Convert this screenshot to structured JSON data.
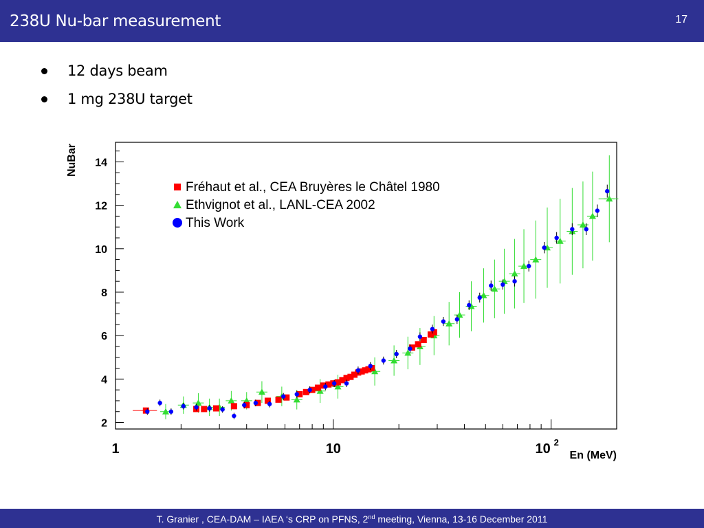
{
  "slide": {
    "title": "238U Nu-bar measurement",
    "number": "17",
    "bullets": [
      "12 days beam",
      "1 mg 238U target"
    ],
    "footer": {
      "before": "T. Granier ,  CEA-DAM – IAEA ‘s CRP on PFNS, 2",
      "sup": "nd",
      "after": " meeting,  Vienna, 13-16 December 2011"
    }
  },
  "colors": {
    "bar_bg": "#2e3192",
    "frehaut": "#ff0000",
    "ethvignot": "#33dd33",
    "this_work": "#0000ff"
  },
  "chart_data": {
    "type": "scatter",
    "xscale": "log",
    "xlim": [
      1,
      200
    ],
    "ylim": [
      1.7,
      14.9
    ],
    "xlabel": "En (MeV)",
    "ylabel": "NuBar",
    "xticks": [
      "1",
      "10",
      "10^2"
    ],
    "yticks": [
      "2",
      "4",
      "6",
      "8",
      "10",
      "12",
      "14"
    ],
    "legend_position": "top-center",
    "series": [
      {
        "name": "Fréhaut et al., CEA Bruyères le Châtel 1980",
        "marker": "square",
        "color": "#ff0000",
        "points": [
          [
            1.38,
            2.55
          ],
          [
            2.35,
            2.62
          ],
          [
            2.55,
            2.62
          ],
          [
            2.9,
            2.65
          ],
          [
            3.5,
            2.75
          ],
          [
            4.0,
            2.8
          ],
          [
            4.5,
            2.9
          ],
          [
            5.0,
            3.0
          ],
          [
            5.6,
            3.05
          ],
          [
            6.1,
            3.15
          ],
          [
            7.0,
            3.3
          ],
          [
            7.5,
            3.4
          ],
          [
            8.0,
            3.5
          ],
          [
            8.5,
            3.6
          ],
          [
            9.0,
            3.7
          ],
          [
            9.5,
            3.75
          ],
          [
            10.0,
            3.8
          ],
          [
            10.5,
            3.85
          ],
          [
            11.0,
            3.95
          ],
          [
            11.5,
            4.05
          ],
          [
            12.0,
            4.1
          ],
          [
            12.5,
            4.2
          ],
          [
            13.0,
            4.3
          ],
          [
            13.5,
            4.35
          ],
          [
            14.0,
            4.4
          ],
          [
            14.5,
            4.45
          ],
          [
            15.0,
            4.5
          ],
          [
            23.0,
            5.45
          ],
          [
            24.5,
            5.6
          ],
          [
            26.0,
            5.8
          ],
          [
            28.0,
            6.05
          ],
          [
            29.0,
            6.15
          ]
        ]
      },
      {
        "name": "Ethvignot et al., LANL-CEA 2002",
        "marker": "triangle",
        "color": "#33dd33",
        "points": [
          [
            1.7,
            2.5
          ],
          [
            2.05,
            2.8
          ],
          [
            2.4,
            2.9
          ],
          [
            2.7,
            2.7
          ],
          [
            3.0,
            2.7
          ],
          [
            3.4,
            3.0
          ],
          [
            4.0,
            3.0
          ],
          [
            4.7,
            3.4
          ],
          [
            5.8,
            3.2
          ],
          [
            6.8,
            3.05
          ],
          [
            8.7,
            3.45
          ],
          [
            10.5,
            3.65
          ],
          [
            15.5,
            4.35
          ],
          [
            19.0,
            4.85
          ],
          [
            22.0,
            5.2
          ],
          [
            25.0,
            5.5
          ],
          [
            29.0,
            6.0
          ],
          [
            34.0,
            6.55
          ],
          [
            38.0,
            6.95
          ],
          [
            43.0,
            7.35
          ],
          [
            49.0,
            7.85
          ],
          [
            55.0,
            8.15
          ],
          [
            61.0,
            8.5
          ],
          [
            68.0,
            8.85
          ],
          [
            75.0,
            9.2
          ],
          [
            85.0,
            9.5
          ],
          [
            96.0,
            10.05
          ],
          [
            110.0,
            10.35
          ],
          [
            125.0,
            10.8
          ],
          [
            140.0,
            11.1
          ],
          [
            155.0,
            11.5
          ],
          [
            185.0,
            12.3
          ]
        ],
        "yerr": [
          0.35,
          0.4,
          0.45,
          0.4,
          0.4,
          0.45,
          0.4,
          0.5,
          0.45,
          0.45,
          0.55,
          0.55,
          0.65,
          0.7,
          0.75,
          0.85,
          0.9,
          1.0,
          1.05,
          1.15,
          1.25,
          1.35,
          1.5,
          1.6,
          1.7,
          1.8,
          1.85,
          1.95,
          2.0,
          2.0,
          2.05,
          2.0
        ]
      },
      {
        "name": "This Work",
        "marker": "circle",
        "color": "#0000ff",
        "points": [
          [
            1.4,
            2.5
          ],
          [
            1.6,
            2.9
          ],
          [
            1.8,
            2.5
          ],
          [
            2.05,
            2.75
          ],
          [
            2.35,
            2.7
          ],
          [
            2.7,
            2.65
          ],
          [
            3.1,
            2.6
          ],
          [
            3.5,
            2.3
          ],
          [
            3.9,
            2.8
          ],
          [
            4.4,
            2.9
          ],
          [
            5.1,
            2.85
          ],
          [
            5.9,
            3.2
          ],
          [
            6.8,
            3.3
          ],
          [
            7.8,
            3.5
          ],
          [
            9.2,
            3.65
          ],
          [
            10.1,
            3.8
          ],
          [
            11.5,
            3.8
          ],
          [
            13.0,
            4.4
          ],
          [
            14.8,
            4.6
          ],
          [
            17.0,
            4.85
          ],
          [
            19.5,
            5.15
          ],
          [
            22.5,
            5.4
          ],
          [
            25.0,
            5.95
          ],
          [
            28.5,
            6.3
          ],
          [
            32.0,
            6.65
          ],
          [
            37.0,
            6.75
          ],
          [
            42.0,
            7.4
          ],
          [
            47.0,
            7.75
          ],
          [
            53.0,
            8.3
          ],
          [
            60.0,
            8.35
          ],
          [
            68.0,
            8.5
          ],
          [
            79.0,
            9.2
          ],
          [
            93.0,
            10.05
          ],
          [
            106.0,
            10.5
          ],
          [
            125.0,
            10.9
          ],
          [
            145.0,
            10.9
          ],
          [
            163.0,
            11.75
          ],
          [
            181.0,
            12.65
          ]
        ]
      }
    ]
  }
}
